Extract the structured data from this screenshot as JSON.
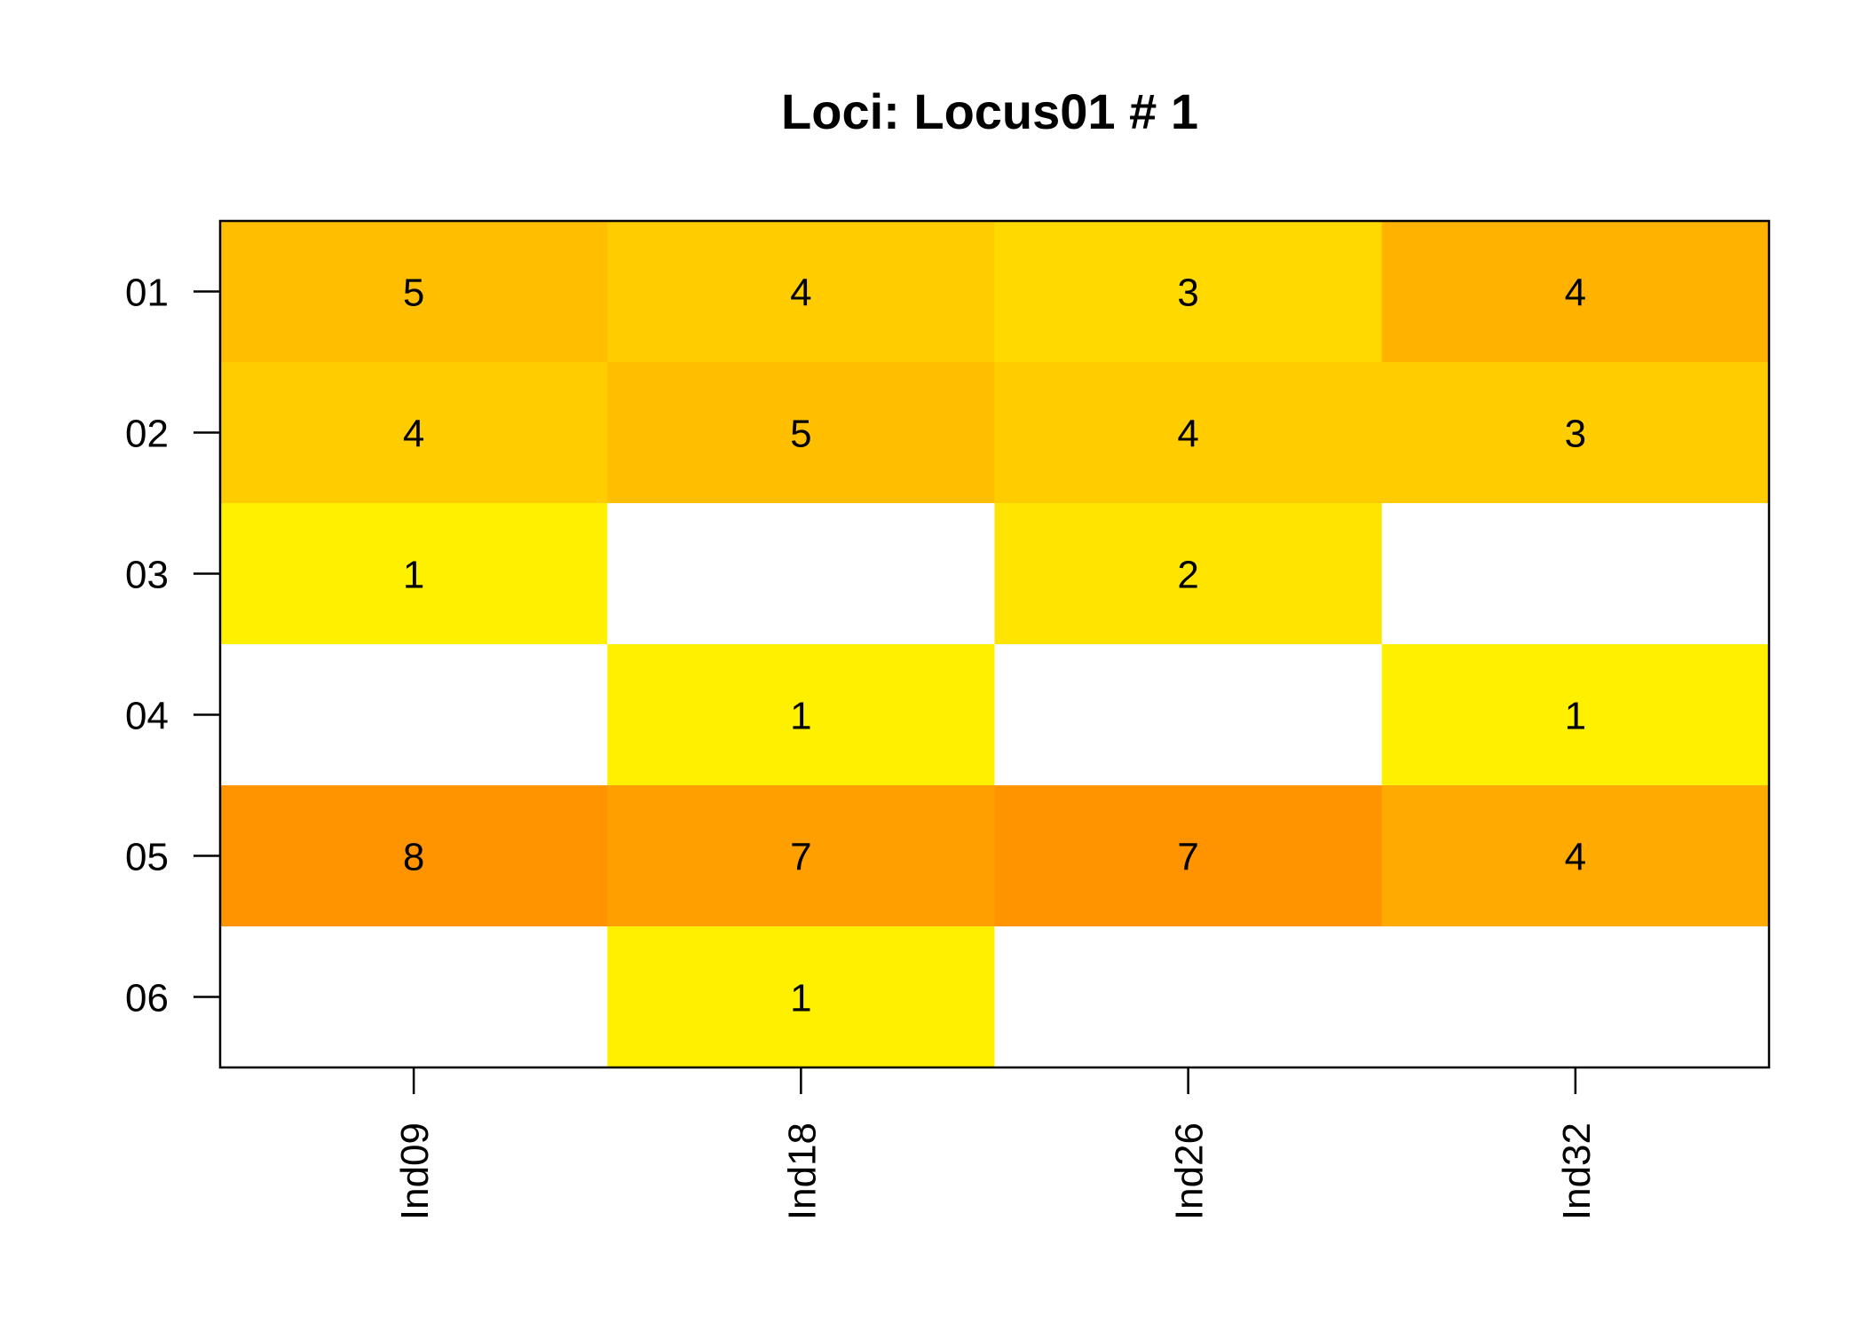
{
  "chart_data": {
    "type": "heatmap",
    "title": "Loci: Locus01 # 1",
    "xlabel": "",
    "ylabel": "",
    "columns": [
      "Ind09",
      "Ind18",
      "Ind26",
      "Ind32"
    ],
    "rows": [
      "01",
      "02",
      "03",
      "04",
      "05",
      "06"
    ],
    "values": [
      [
        5,
        4,
        3,
        4
      ],
      [
        4,
        5,
        4,
        3
      ],
      [
        1,
        null,
        2,
        null
      ],
      [
        null,
        1,
        null,
        1
      ],
      [
        8,
        7,
        7,
        4
      ],
      [
        null,
        1,
        null,
        null
      ]
    ],
    "cell_colors": [
      [
        "#ffbf00",
        "#ffcc00",
        "#ffd900",
        "#ffb300"
      ],
      [
        "#ffcc00",
        "#ffbf00",
        "#ffcc00",
        "#ffcc00"
      ],
      [
        "#fff000",
        "#ffffff",
        "#ffe400",
        "#ffffff"
      ],
      [
        "#ffffff",
        "#fff000",
        "#ffffff",
        "#fff000"
      ],
      [
        "#ff9400",
        "#ffa000",
        "#ff9400",
        "#ffaa00"
      ],
      [
        "#ffffff",
        "#fff000",
        "#ffffff",
        "#ffffff"
      ]
    ],
    "color_scale": "heat (white = empty)",
    "legend": "none",
    "grid": false
  }
}
